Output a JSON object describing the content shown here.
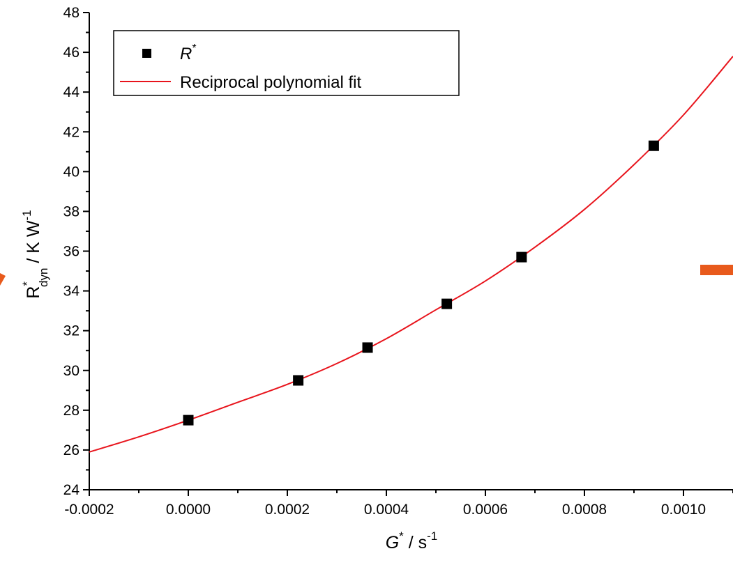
{
  "chart_data": {
    "type": "scatter",
    "xlabel": {
      "main": "G",
      "sup": "*",
      "units": " / s",
      "units_sup": "-1"
    },
    "ylabel": {
      "main": "R",
      "sup": "*",
      "sub": "dyn",
      "units": " / K W",
      "units_sup": "-1"
    },
    "xlim": [
      -0.0002,
      0.0011
    ],
    "ylim": [
      24,
      48
    ],
    "x_ticks": [
      -0.0002,
      0.0,
      0.0002,
      0.0004,
      0.0006,
      0.0008,
      0.001
    ],
    "x_tick_labels": [
      "-0.0002",
      "0.0000",
      "0.0002",
      "0.0004",
      "0.0006",
      "0.0008",
      "0.0010"
    ],
    "y_ticks": [
      24,
      26,
      28,
      30,
      32,
      34,
      36,
      38,
      40,
      42,
      44,
      46,
      48
    ],
    "y_tick_labels": [
      "24",
      "26",
      "28",
      "30",
      "32",
      "34",
      "36",
      "38",
      "40",
      "42",
      "44",
      "46",
      "48"
    ],
    "legend": {
      "placement": "top-left",
      "entries": [
        {
          "label": "R",
          "label_sup": "*",
          "marker": "square"
        },
        {
          "label": "Reciprocal polynomial fit",
          "marker": "line"
        }
      ]
    },
    "series": [
      {
        "name": "R*",
        "kind": "scatter",
        "color": "#000000",
        "points": [
          {
            "x": 0.0,
            "y": 27.5
          },
          {
            "x": 0.000222,
            "y": 29.5
          },
          {
            "x": 0.000362,
            "y": 31.15
          },
          {
            "x": 0.000522,
            "y": 33.35
          },
          {
            "x": 0.000673,
            "y": 35.7
          },
          {
            "x": 0.00094,
            "y": 41.3
          }
        ]
      },
      {
        "name": "Reciprocal polynomial fit",
        "kind": "line",
        "color": "#e8141c",
        "points": [
          {
            "x": -0.0002,
            "y": 25.9
          },
          {
            "x": -0.0001,
            "y": 26.66
          },
          {
            "x": 0.0,
            "y": 27.5
          },
          {
            "x": 0.0001,
            "y": 28.4
          },
          {
            "x": 0.0002,
            "y": 29.3
          },
          {
            "x": 0.0003,
            "y": 30.35
          },
          {
            "x": 0.0004,
            "y": 31.6
          },
          {
            "x": 0.0005,
            "y": 33.05
          },
          {
            "x": 0.0006,
            "y": 34.5
          },
          {
            "x": 0.0007,
            "y": 36.2
          },
          {
            "x": 0.0008,
            "y": 38.1
          },
          {
            "x": 0.0009,
            "y": 40.35
          },
          {
            "x": 0.001,
            "y": 42.85
          },
          {
            "x": 0.0011,
            "y": 45.8
          }
        ]
      }
    ],
    "decorations": {
      "accent_color": "#e85a1c"
    }
  }
}
